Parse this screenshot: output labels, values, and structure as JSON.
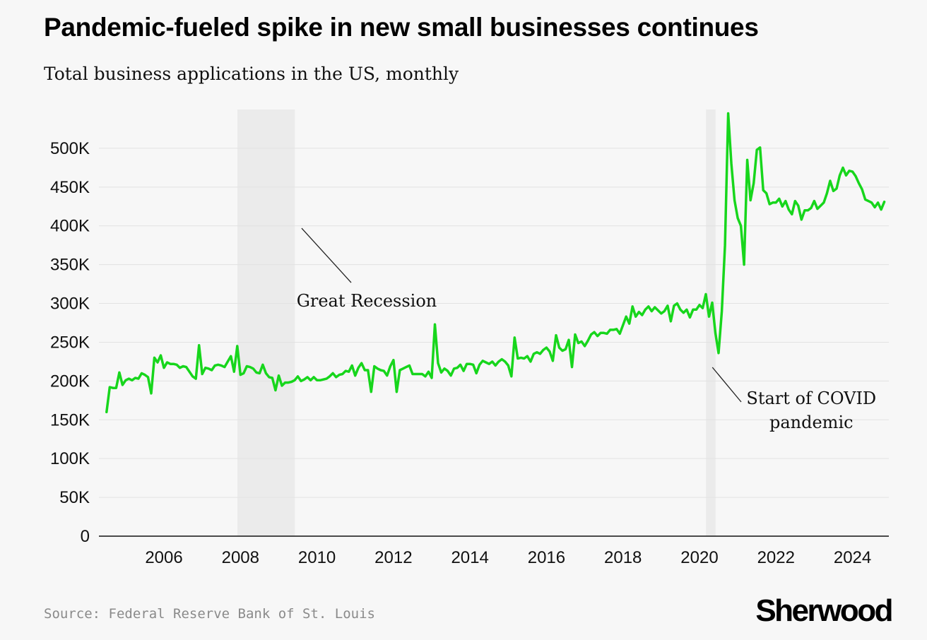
{
  "chart_data": {
    "type": "line",
    "title": "Pandemic-fueled spike in new small businesses continues",
    "subtitle": "Total business applications in the US, monthly",
    "xlabel": "",
    "ylabel": "",
    "ylim": [
      0,
      550000
    ],
    "xlim": [
      2004.3,
      2024.95
    ],
    "y_ticks": [
      0,
      50000,
      100000,
      150000,
      200000,
      250000,
      300000,
      350000,
      400000,
      450000,
      500000
    ],
    "y_tick_labels": [
      "0",
      "50K",
      "100K",
      "150K",
      "200K",
      "250K",
      "300K",
      "350K",
      "400K",
      "450K",
      "500K"
    ],
    "x_ticks": [
      2006,
      2008,
      2010,
      2012,
      2014,
      2016,
      2018,
      2020,
      2022,
      2024
    ],
    "x_tick_labels": [
      "2006",
      "2008",
      "2010",
      "2012",
      "2014",
      "2016",
      "2018",
      "2020",
      "2022",
      "2024"
    ],
    "grid": true,
    "line_color": "#17d61c",
    "shaded_periods": [
      {
        "name": "Great Recession",
        "start": 2007.92,
        "end": 2009.42
      },
      {
        "name": "Start of COVID pandemic",
        "start": 2020.17,
        "end": 2020.42
      }
    ],
    "annotations": [
      {
        "text": "Great Recession",
        "point_x": 2009.6,
        "point_y": 397000,
        "label_x": 2011.3,
        "label_y": 296000
      },
      {
        "text": "Start of COVID pandemic",
        "text_lines": [
          "Start of COVID",
          "pandemic"
        ],
        "point_x": 2020.3,
        "point_y": 200000,
        "label_x": 2022.0,
        "label_y": 155000
      }
    ],
    "series": [
      {
        "name": "Total business applications",
        "x_start": 2004.5,
        "x_step": 0.08333,
        "values": [
          160000,
          192000,
          191000,
          191000,
          211000,
          195000,
          201000,
          203000,
          201000,
          204000,
          203000,
          210000,
          208000,
          205000,
          184000,
          230000,
          224000,
          233000,
          217000,
          224000,
          222000,
          222000,
          221000,
          217000,
          219000,
          218000,
          212000,
          206000,
          203000,
          246000,
          209000,
          217000,
          216000,
          214000,
          220000,
          221000,
          220000,
          218000,
          225000,
          232000,
          212000,
          245000,
          208000,
          210000,
          219000,
          218000,
          216000,
          211000,
          210000,
          221000,
          210000,
          205000,
          204000,
          188000,
          207000,
          194000,
          198000,
          198000,
          199000,
          201000,
          206000,
          200000,
          202000,
          205000,
          201000,
          205000,
          201000,
          201000,
          202000,
          203000,
          206000,
          210000,
          205000,
          208000,
          209000,
          213000,
          212000,
          220000,
          207000,
          217000,
          223000,
          214000,
          214000,
          186000,
          219000,
          216000,
          214000,
          213000,
          207000,
          219000,
          227000,
          186000,
          214000,
          216000,
          218000,
          220000,
          209000,
          209000,
          209000,
          209000,
          206000,
          212000,
          204000,
          273000,
          223000,
          211000,
          216000,
          213000,
          207000,
          216000,
          217000,
          221000,
          213000,
          222000,
          222000,
          221000,
          210000,
          221000,
          226000,
          224000,
          222000,
          225000,
          220000,
          225000,
          228000,
          225000,
          220000,
          206000,
          256000,
          229000,
          230000,
          229000,
          232000,
          225000,
          235000,
          237000,
          235000,
          240000,
          243000,
          238000,
          226000,
          259000,
          243000,
          239000,
          241000,
          253000,
          218000,
          260000,
          249000,
          251000,
          245000,
          252000,
          260000,
          263000,
          258000,
          262000,
          262000,
          261000,
          266000,
          266000,
          267000,
          261000,
          272000,
          283000,
          274000,
          296000,
          283000,
          289000,
          285000,
          292000,
          296000,
          290000,
          295000,
          291000,
          287000,
          290000,
          297000,
          277000,
          297000,
          300000,
          292000,
          288000,
          292000,
          282000,
          292000,
          292000,
          298000,
          294000,
          312000,
          283000,
          301000,
          262000,
          236000,
          290000,
          375000,
          545000,
          480000,
          433000,
          410000,
          400000,
          350000,
          485000,
          433000,
          455000,
          498000,
          501000,
          446000,
          442000,
          428000,
          430000,
          430000,
          435000,
          425000,
          432000,
          421000,
          415000,
          432000,
          426000,
          408000,
          420000,
          420000,
          423000,
          432000,
          422000,
          426000,
          430000,
          442000,
          458000,
          445000,
          448000,
          465000,
          475000,
          465000,
          471000,
          470000,
          464000,
          455000,
          447000,
          434000,
          432000,
          430000,
          424000,
          430000,
          421000,
          431000
        ]
      }
    ]
  },
  "source": "Source: Federal Reserve Bank of St. Louis",
  "brand": "Sherwood"
}
